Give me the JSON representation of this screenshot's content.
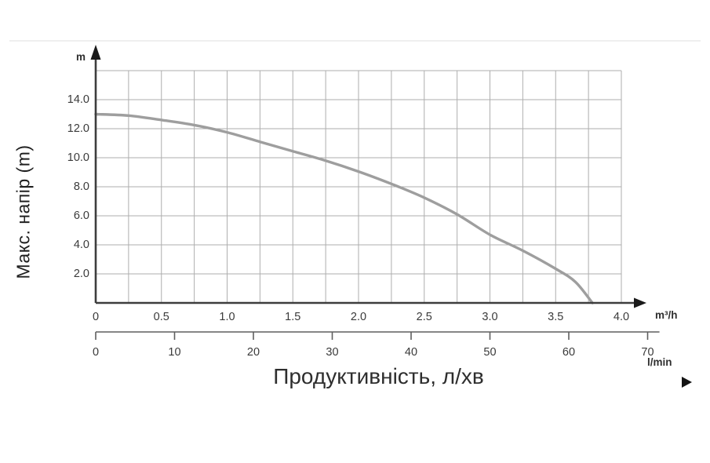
{
  "page": {
    "y_axis_title": "Макс. напір (m)",
    "x_axis_title": "Продуктивність, л/хв"
  },
  "chart_data": {
    "type": "line",
    "title": "",
    "xlabel": "Продуктивність, л/хв",
    "ylabel": "Макс. напір (m)",
    "x_axis": {
      "unit_label": "m³/h",
      "range": [
        0,
        4.0
      ],
      "ticks": [
        "0",
        "0.5",
        "1.0",
        "1.5",
        "2.0",
        "2.5",
        "3.0",
        "3.5",
        "4.0"
      ],
      "tick_values": [
        0,
        0.5,
        1.0,
        1.5,
        2.0,
        2.5,
        3.0,
        3.5,
        4.0
      ],
      "minor_step": 0.25,
      "arrow": true
    },
    "y_axis": {
      "unit_label": "m",
      "range": [
        0,
        16
      ],
      "ticks": [
        "14.0",
        "12.0",
        "10.0",
        "8.0",
        "6.0",
        "4.0",
        "2.0"
      ],
      "tick_values": [
        14,
        12,
        10,
        8,
        6,
        4,
        2
      ],
      "grid_step": 2,
      "arrow": true
    },
    "x2_axis": {
      "unit_label": "l/min",
      "range": [
        0,
        71.5
      ],
      "ticks": [
        "0",
        "10",
        "20",
        "30",
        "40",
        "50",
        "60",
        "70"
      ],
      "tick_values": [
        0,
        10,
        20,
        30,
        40,
        50,
        60,
        70
      ],
      "lmin_per_m3h": 16.6667
    },
    "grid": {
      "show": true,
      "x_step": 0.25,
      "y_step": 2
    },
    "series": [
      {
        "name": "pump-head-curve",
        "x": [
          0,
          0.25,
          0.5,
          0.75,
          1.0,
          1.25,
          1.5,
          1.75,
          2.0,
          2.25,
          2.5,
          2.75,
          3.0,
          3.25,
          3.5,
          3.65,
          3.78
        ],
        "y": [
          13.0,
          12.9,
          12.6,
          12.25,
          11.75,
          11.1,
          10.45,
          9.8,
          9.05,
          8.2,
          7.25,
          6.1,
          4.7,
          3.6,
          2.35,
          1.45,
          0.0
        ]
      }
    ],
    "colors": {
      "curve": "#9e9e9e",
      "grid": "#aeaeae",
      "axis": "#3d3d3d",
      "secondary_axis": "#5f5f5f",
      "text": "#3a3a3a",
      "background": "#ffffff"
    }
  }
}
